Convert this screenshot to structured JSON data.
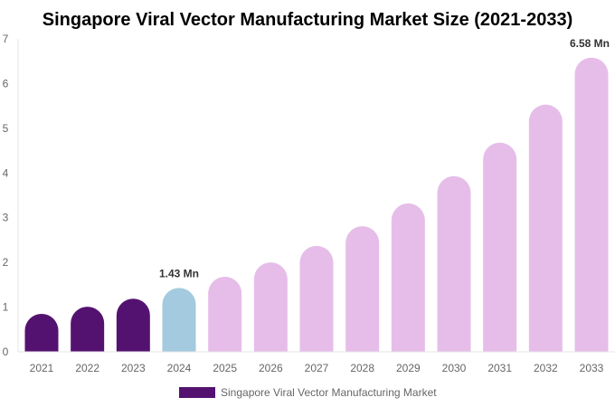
{
  "chart_data": {
    "type": "bar",
    "title": "Singapore Viral Vector Manufacturing Market Size (2021-2033)",
    "categories": [
      "2021",
      "2022",
      "2023",
      "2024",
      "2025",
      "2026",
      "2027",
      "2028",
      "2029",
      "2030",
      "2031",
      "2032",
      "2033"
    ],
    "series": [
      {
        "name": "Singapore Viral Vector Manufacturing Market",
        "values": [
          0.85,
          1.01,
          1.19,
          1.43,
          1.68,
          2.0,
          2.37,
          2.81,
          3.32,
          3.93,
          4.68,
          5.53,
          6.58
        ]
      }
    ],
    "data_labels": [
      {
        "category": "2024",
        "text": "1.43 Mn"
      },
      {
        "category": "2033",
        "text": "6.58 Mn"
      }
    ],
    "ylim": [
      0,
      7
    ],
    "yticks": [
      0,
      1,
      2,
      3,
      4,
      5,
      6,
      7
    ],
    "grid": false,
    "legend_position": "bottom",
    "colors": {
      "historical": "#541270",
      "current": "#a3cade",
      "forecast": "#e6bde9"
    },
    "xlabel": "",
    "ylabel": ""
  }
}
